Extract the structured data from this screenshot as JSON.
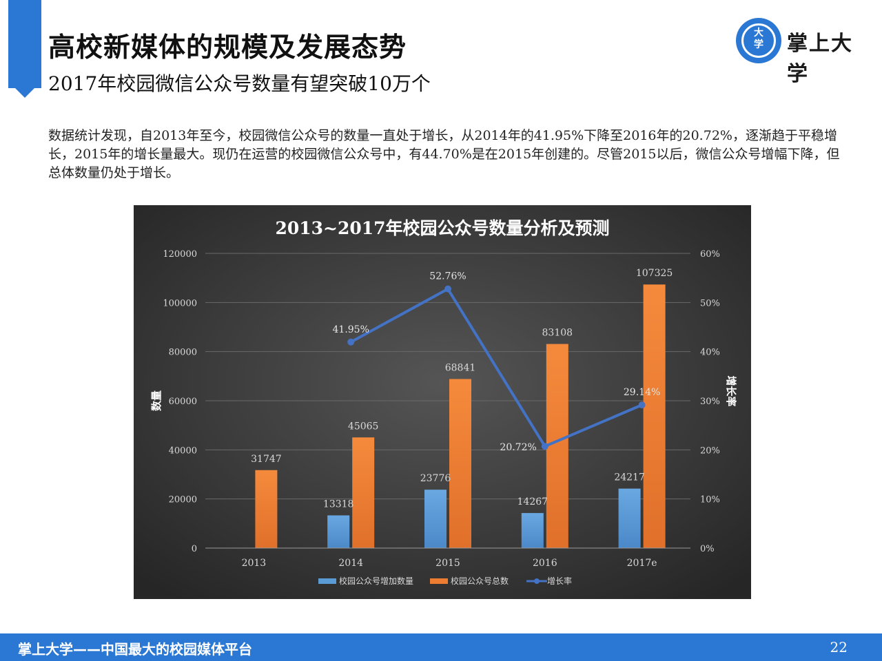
{
  "header": {
    "title": "高校新媒体的规模及发展态势",
    "subtitle": "2017年校园微信公众号数量有望突破10万个"
  },
  "logo": {
    "mark_top": "大",
    "mark_bottom": "学",
    "text": "掌上大学"
  },
  "paragraph": "数据统计发现，自2013年至今，校园微信公众号的数量一直处于增长，从2014年的41.95%下降至2016年的20.72%，逐渐趋于平稳增长，2015年的增长量最大。现仍在运营的校园微信公众号中，有44.70%是在2015年创建的。尽管2015以后，微信公众号增幅下降，但总体数量仍处于增长。",
  "chart_data": {
    "type": "bar",
    "title": "2013~2017年校园公众号数量分析及预测",
    "categories": [
      "2013",
      "2014",
      "2015",
      "2016",
      "2017e"
    ],
    "ylabel": "数量",
    "y2label": "增长率",
    "ylim": [
      0,
      120000
    ],
    "y_ticks": [
      "0",
      "20000",
      "40000",
      "60000",
      "80000",
      "100000",
      "120000"
    ],
    "y2lim": [
      0,
      60
    ],
    "y2_ticks": [
      "0%",
      "10%",
      "20%",
      "30%",
      "40%",
      "50%",
      "60%"
    ],
    "legend_position": "bottom",
    "series": [
      {
        "name": "校园公众号增加数量",
        "type": "bar",
        "color": "#5b9bd5",
        "values": [
          null,
          13318,
          23776,
          14267,
          24217
        ],
        "labels": [
          "",
          "13318",
          "23776",
          "14267",
          "24217"
        ]
      },
      {
        "name": "校园公众号总数",
        "type": "bar",
        "color": "#ed7d31",
        "values": [
          31747,
          45065,
          68841,
          83108,
          107325
        ],
        "labels": [
          "31747",
          "45065",
          "68841",
          "83108",
          "107325"
        ]
      },
      {
        "name": "增长率",
        "type": "line",
        "axis": "right",
        "color": "#4472c4",
        "values": [
          null,
          41.95,
          52.76,
          20.72,
          29.14
        ],
        "labels": [
          "",
          "41.95%",
          "52.76%",
          "20.72%",
          "29.14%"
        ]
      }
    ]
  },
  "footer": {
    "text": "掌上大学——中国最大的校园媒体平台",
    "page": "22"
  }
}
